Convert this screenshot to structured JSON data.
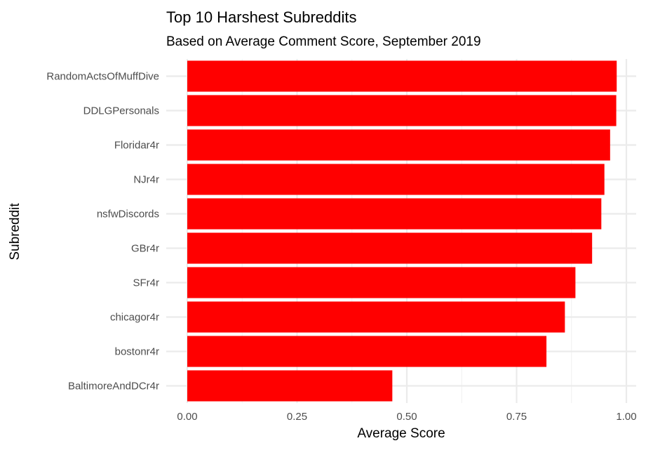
{
  "chart_data": {
    "type": "bar",
    "orientation": "horizontal",
    "title": "Top 10 Harshest Subreddits",
    "subtitle": "Based on Average Comment Score, September 2019",
    "xlabel": "Average Score",
    "ylabel": "Subreddit",
    "xlim": [
      0,
      1
    ],
    "x_ticks": [
      0,
      0.25,
      0.5,
      0.75,
      1
    ],
    "x_tick_labels": [
      "0.00",
      "0.25",
      "0.50",
      "0.75",
      "1.00"
    ],
    "grid": true,
    "legend": "none",
    "bar_color": "#ff0000",
    "categories": [
      "RandomActsOfMuffDive",
      "DDLGPersonals",
      "Floridar4r",
      "NJr4r",
      "nsfwDiscords",
      "GBr4r",
      "SFr4r",
      "chicagor4r",
      "bostonr4r",
      "BaltimoreAndDCr4r"
    ],
    "values": [
      0.978,
      0.977,
      0.963,
      0.95,
      0.943,
      0.922,
      0.884,
      0.86,
      0.818,
      0.467
    ]
  }
}
